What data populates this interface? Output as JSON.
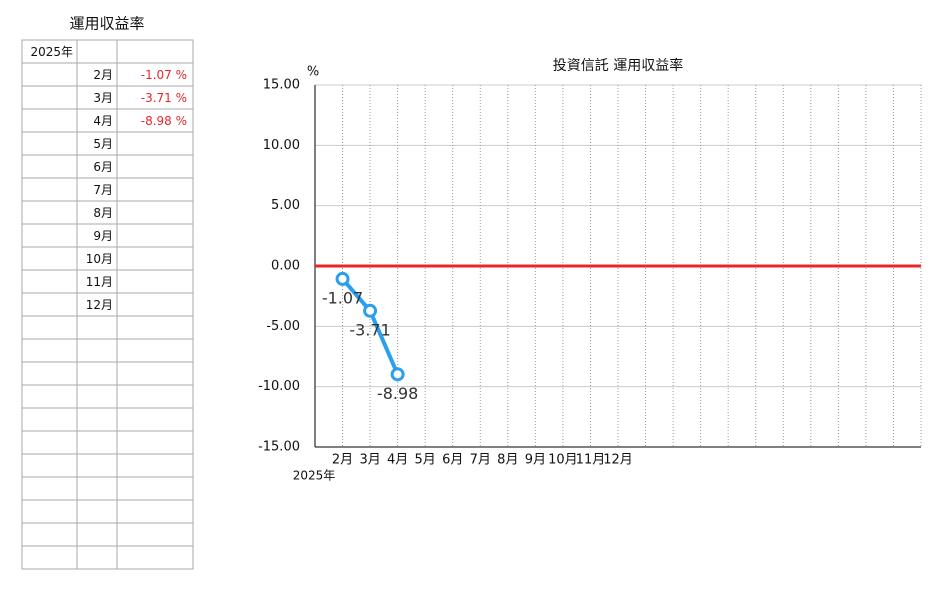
{
  "table": {
    "title": "運用収益率",
    "value_color": "#e8262a",
    "rows": [
      [
        "2025年",
        null,
        null
      ],
      [
        null,
        "2月",
        "-1.07 %"
      ],
      [
        null,
        "3月",
        "-3.71 %"
      ],
      [
        null,
        "4月",
        "-8.98 %"
      ],
      [
        null,
        "5月",
        null
      ],
      [
        null,
        "6月",
        null
      ],
      [
        null,
        "7月",
        null
      ],
      [
        null,
        "8月",
        null
      ],
      [
        null,
        "9月",
        null
      ],
      [
        null,
        "10月",
        null
      ],
      [
        null,
        "11月",
        null
      ],
      [
        null,
        "12月",
        null
      ],
      [
        null,
        null,
        null
      ],
      [
        null,
        null,
        null
      ],
      [
        null,
        null,
        null
      ],
      [
        null,
        null,
        null
      ],
      [
        null,
        null,
        null
      ],
      [
        null,
        null,
        null
      ],
      [
        null,
        null,
        null
      ],
      [
        null,
        null,
        null
      ],
      [
        null,
        null,
        null
      ],
      [
        null,
        null,
        null
      ],
      [
        null,
        null,
        null
      ]
    ]
  },
  "chart_data": {
    "type": "line",
    "title": "投資信託 運用収益率",
    "y_unit": "%",
    "x_label": "2025年",
    "categories": [
      "2月",
      "3月",
      "4月",
      "5月",
      "6月",
      "7月",
      "8月",
      "9月",
      "10月",
      "11月",
      "12月",
      null,
      null,
      null,
      null,
      null,
      null,
      null,
      null,
      null,
      null,
      null
    ],
    "series": [
      {
        "name": "運用収益率",
        "color": "#2a9ff0",
        "values": [
          -1.07,
          -3.71,
          -8.98,
          null,
          null,
          null,
          null,
          null,
          null,
          null,
          null,
          null,
          null,
          null,
          null,
          null,
          null,
          null,
          null,
          null,
          null,
          null
        ]
      }
    ],
    "ylim": [
      -15,
      15
    ],
    "yticks": [
      {
        "value": -15,
        "label": "-15.00"
      },
      {
        "value": -10,
        "label": "-10.00"
      },
      {
        "value": -5,
        "label": "-5.00"
      },
      {
        "value": 0,
        "label": "0.00"
      },
      {
        "value": 5,
        "label": "5.00"
      },
      {
        "value": 10,
        "label": "10.00"
      },
      {
        "value": 15,
        "label": "15.00"
      }
    ],
    "zero_line_color": "#e8262a",
    "grid": true,
    "data_labels": true
  }
}
